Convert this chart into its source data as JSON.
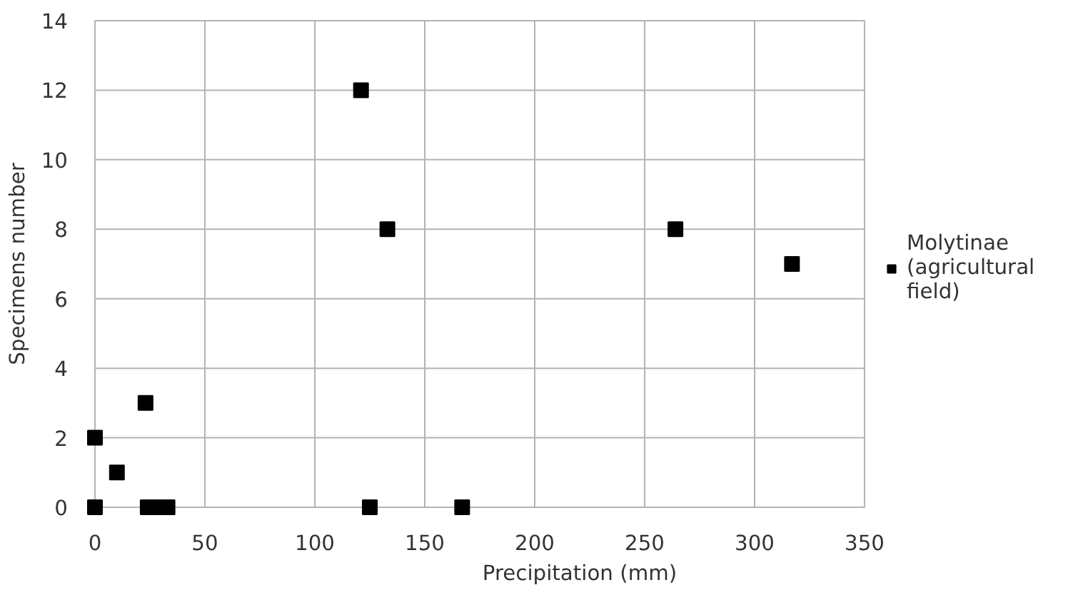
{
  "chart_data": {
    "type": "scatter",
    "xlabel": "Precipitation (mm)",
    "ylabel": "Specimens number",
    "xlim": [
      0,
      350
    ],
    "ylim": [
      0,
      14
    ],
    "xticks": [
      0,
      50,
      100,
      150,
      200,
      250,
      300,
      350
    ],
    "yticks": [
      0,
      2,
      4,
      6,
      8,
      10,
      12,
      14
    ],
    "grid": true,
    "legend": "right",
    "marker": "square",
    "series": [
      {
        "name": "Molytinae (agricultural field)",
        "color": "#000000",
        "x": [
          0,
          0,
          10,
          23,
          24,
          28,
          33,
          121,
          133,
          125,
          167,
          264,
          317
        ],
        "values": [
          2,
          0,
          1,
          3,
          0,
          0,
          0,
          12,
          8,
          0,
          0,
          8,
          7
        ]
      }
    ]
  }
}
